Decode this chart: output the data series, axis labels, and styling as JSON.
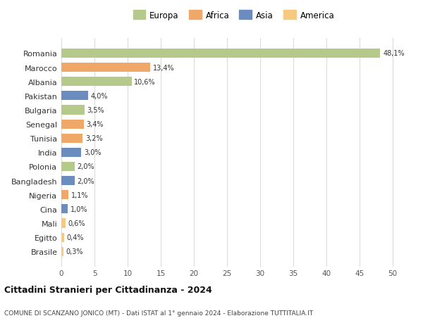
{
  "categories": [
    "Brasile",
    "Egitto",
    "Mali",
    "Cina",
    "Nigeria",
    "Bangladesh",
    "Polonia",
    "India",
    "Tunisia",
    "Senegal",
    "Bulgaria",
    "Pakistan",
    "Albania",
    "Marocco",
    "Romania"
  ],
  "values": [
    0.3,
    0.4,
    0.6,
    1.0,
    1.1,
    2.0,
    2.0,
    3.0,
    3.2,
    3.4,
    3.5,
    4.0,
    10.6,
    13.4,
    48.1
  ],
  "labels": [
    "0,3%",
    "0,4%",
    "0,6%",
    "1,0%",
    "1,1%",
    "2,0%",
    "2,0%",
    "3,0%",
    "3,2%",
    "3,4%",
    "3,5%",
    "4,0%",
    "10,6%",
    "13,4%",
    "48,1%"
  ],
  "colors": [
    "#f5c97f",
    "#f5c97f",
    "#f5c97f",
    "#6b8cbf",
    "#f0a868",
    "#6b8cbf",
    "#b5c98a",
    "#6b8cbf",
    "#f0a868",
    "#f0a868",
    "#b5c98a",
    "#6b8cbf",
    "#b5c98a",
    "#f0a868",
    "#b5c98a"
  ],
  "legend_labels": [
    "Europa",
    "Africa",
    "Asia",
    "America"
  ],
  "legend_colors": [
    "#b5c98a",
    "#f0a868",
    "#6b8cbf",
    "#f5c97f"
  ],
  "title": "Cittadini Stranieri per Cittadinanza - 2024",
  "subtitle": "COMUNE DI SCANZANO JONICO (MT) - Dati ISTAT al 1° gennaio 2024 - Elaborazione TUTTITALIA.IT",
  "xlim": [
    0,
    52
  ],
  "xticks": [
    0,
    5,
    10,
    15,
    20,
    25,
    30,
    35,
    40,
    45,
    50
  ],
  "background_color": "#ffffff",
  "grid_color": "#d8d8d8"
}
